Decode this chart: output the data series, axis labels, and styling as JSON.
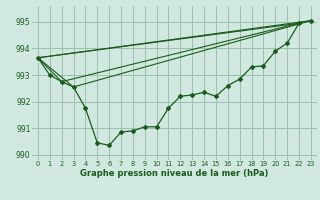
{
  "background_color": "#d0e8e0",
  "grid_color": "#9dbfb0",
  "line_color": "#1a5c1a",
  "marker_color": "#1a5c1a",
  "xlabel_text": "Graphe pression niveau de la mer (hPa)",
  "yticks": [
    990,
    991,
    992,
    993,
    994,
    995
  ],
  "xticks": [
    0,
    1,
    2,
    3,
    4,
    5,
    6,
    7,
    8,
    9,
    10,
    11,
    12,
    13,
    14,
    15,
    16,
    17,
    18,
    19,
    20,
    21,
    22,
    23
  ],
  "xlim": [
    -0.5,
    23.5
  ],
  "ylim": [
    989.8,
    995.6
  ],
  "series_main": [
    [
      0,
      993.65
    ],
    [
      1,
      993.0
    ],
    [
      2,
      992.75
    ],
    [
      3,
      992.55
    ],
    [
      4,
      991.75
    ],
    [
      5,
      990.45
    ],
    [
      6,
      990.35
    ],
    [
      7,
      990.85
    ],
    [
      8,
      990.9
    ],
    [
      9,
      991.05
    ],
    [
      10,
      991.05
    ],
    [
      11,
      991.75
    ],
    [
      12,
      992.2
    ],
    [
      13,
      992.25
    ],
    [
      14,
      992.35
    ],
    [
      15,
      992.2
    ],
    [
      16,
      992.6
    ],
    [
      17,
      992.85
    ],
    [
      18,
      993.3
    ],
    [
      19,
      993.35
    ],
    [
      20,
      993.9
    ],
    [
      21,
      994.2
    ],
    [
      22,
      994.95
    ],
    [
      23,
      995.05
    ]
  ],
  "line2": [
    [
      0,
      993.65
    ],
    [
      23,
      995.05
    ]
  ],
  "line3": [
    [
      0,
      993.65
    ],
    [
      22,
      994.95
    ]
  ],
  "line4": [
    [
      0,
      993.65
    ],
    [
      3,
      992.55
    ],
    [
      23,
      995.05
    ]
  ],
  "line5": [
    [
      0,
      993.65
    ],
    [
      2,
      992.75
    ],
    [
      22,
      994.95
    ]
  ]
}
